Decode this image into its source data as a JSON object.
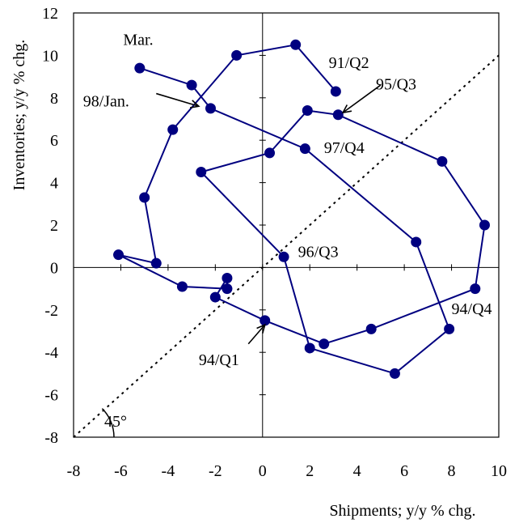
{
  "chart_data": {
    "type": "scatter",
    "title": "",
    "xlabel": "Shipments; y/y % chg.",
    "ylabel": "Inventories; y/y % chg.",
    "xlim": [
      -8,
      10
    ],
    "ylim": [
      -8,
      12
    ],
    "x_ticks": [
      -8,
      -6,
      -4,
      -2,
      0,
      2,
      4,
      6,
      8,
      10
    ],
    "y_ticks": [
      -8,
      -6,
      -4,
      -2,
      0,
      2,
      4,
      6,
      8,
      10,
      12
    ],
    "x_tick_labels": [
      "-8",
      "-6",
      "-4",
      "-2",
      "0",
      "2",
      "4",
      "6",
      "8",
      "10"
    ],
    "y_tick_labels": [
      "-8",
      "-6",
      "-4",
      "-2",
      "0",
      "2",
      "4",
      "6",
      "8",
      "10",
      "12"
    ],
    "grid": false,
    "series": [
      {
        "color": "#000080",
        "connected": true,
        "points": [
          {
            "x": 3.1,
            "y": 8.3
          },
          {
            "x": 1.4,
            "y": 10.5
          },
          {
            "x": -1.1,
            "y": 10.0
          },
          {
            "x": -3.8,
            "y": 6.5
          },
          {
            "x": -5.0,
            "y": 3.3
          },
          {
            "x": -4.5,
            "y": 0.2
          },
          {
            "x": -6.1,
            "y": 0.6
          },
          {
            "x": -3.4,
            "y": -0.9
          },
          {
            "x": -1.5,
            "y": -1.0
          },
          {
            "x": -1.5,
            "y": -0.5
          },
          {
            "x": -2.0,
            "y": -1.4
          },
          {
            "x": 0.1,
            "y": -2.5
          },
          {
            "x": 2.6,
            "y": -3.6
          },
          {
            "x": 4.6,
            "y": -2.9
          },
          {
            "x": 9.0,
            "y": -1.0
          },
          {
            "x": 9.4,
            "y": 2.0
          },
          {
            "x": 7.6,
            "y": 5.0
          },
          {
            "x": 3.2,
            "y": 7.2
          },
          {
            "x": 1.9,
            "y": 7.4
          },
          {
            "x": 0.3,
            "y": 5.4
          },
          {
            "x": -2.6,
            "y": 4.5
          },
          {
            "x": 0.9,
            "y": 0.5
          },
          {
            "x": 2.0,
            "y": -3.8
          },
          {
            "x": 5.6,
            "y": -5.0
          },
          {
            "x": 7.9,
            "y": -2.9
          },
          {
            "x": 6.5,
            "y": 1.2
          },
          {
            "x": 1.8,
            "y": 5.6
          },
          {
            "x": -2.2,
            "y": 7.5
          },
          {
            "x": -3.0,
            "y": 8.6
          },
          {
            "x": -5.2,
            "y": 9.4
          }
        ]
      }
    ],
    "reference_line": {
      "from": [
        -8,
        -8
      ],
      "to": [
        10,
        10
      ],
      "style": "dotted"
    },
    "annotations": [
      {
        "text": "Mar.",
        "x": -5.9,
        "y": 10.5
      },
      {
        "text": "91/Q2",
        "x": 2.8,
        "y": 9.4
      },
      {
        "text": "95/Q3",
        "x": 4.8,
        "y": 8.4
      },
      {
        "text": "98/Jan.",
        "x": -7.6,
        "y": 7.6
      },
      {
        "text": "97/Q4",
        "x": 2.6,
        "y": 5.4
      },
      {
        "text": "96/Q3",
        "x": 1.5,
        "y": 0.5
      },
      {
        "text": "94/Q4",
        "x": 8.0,
        "y": -2.2
      },
      {
        "text": "94/Q1",
        "x": -2.7,
        "y": -4.6
      },
      {
        "text": "45°",
        "x": -6.7,
        "y": -7.5
      }
    ]
  }
}
